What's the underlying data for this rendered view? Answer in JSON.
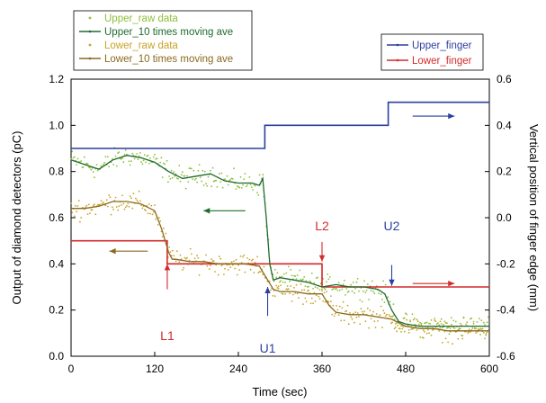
{
  "chart_data": {
    "type": "line",
    "xlabel": "Time (sec)",
    "ylabel": "Output of diamond detectors (pC)",
    "y2label": "Vertical position of finger edge (mm)",
    "xlim": [
      0,
      600
    ],
    "ylim": [
      0,
      1.2
    ],
    "y2lim": [
      -0.6,
      0.6
    ],
    "x_ticks": [
      "0",
      "120",
      "240",
      "360",
      "480",
      "600"
    ],
    "y_ticks": [
      "0.0",
      "0.2",
      "0.4",
      "0.6",
      "0.8",
      "1.0",
      "1.2"
    ],
    "y2_ticks": [
      "-0.6",
      "-0.4",
      "-0.2",
      "0.0",
      "0.2",
      "0.4",
      "0.6"
    ],
    "grid": false,
    "legend_left": {
      "placement": "top-left",
      "entries": [
        {
          "label": "Upper_raw data",
          "color": "#8fbf3a",
          "marker": "dot"
        },
        {
          "label": "Upper_10 times moving ave",
          "color": "#1e6b2e",
          "marker": "line"
        },
        {
          "label": "Lower_raw data",
          "color": "#c9a227",
          "marker": "dot"
        },
        {
          "label": "Lower_10 times moving ave",
          "color": "#8a6a1e",
          "marker": "line"
        }
      ]
    },
    "legend_right": {
      "placement": "top-right",
      "entries": [
        {
          "label": "Upper_finger",
          "color": "#2b3fa0",
          "marker": "line"
        },
        {
          "label": "Lower_finger",
          "color": "#d42a2a",
          "marker": "line"
        }
      ]
    },
    "series": [
      {
        "name": "Upper_finger",
        "axis": "right",
        "color": "#2b3fa0",
        "step": true,
        "x": [
          0,
          278,
          278,
          455,
          455,
          600
        ],
        "y": [
          0.3,
          0.3,
          0.4,
          0.4,
          0.5,
          0.5
        ]
      },
      {
        "name": "Lower_finger",
        "axis": "right",
        "color": "#d42a2a",
        "step": true,
        "x": [
          0,
          138,
          138,
          360,
          360,
          600
        ],
        "y": [
          -0.1,
          -0.1,
          -0.2,
          -0.2,
          -0.3,
          -0.3
        ]
      },
      {
        "name": "Upper_10 times moving ave",
        "axis": "left",
        "color": "#1e6b2e",
        "x": [
          0,
          20,
          40,
          60,
          80,
          100,
          120,
          140,
          160,
          180,
          200,
          220,
          240,
          260,
          270,
          275,
          280,
          285,
          290,
          300,
          320,
          340,
          360,
          380,
          400,
          420,
          440,
          450,
          460,
          470,
          480,
          500,
          520,
          540,
          560,
          580,
          600
        ],
        "y": [
          0.85,
          0.83,
          0.81,
          0.85,
          0.87,
          0.86,
          0.84,
          0.8,
          0.77,
          0.78,
          0.79,
          0.76,
          0.75,
          0.75,
          0.74,
          0.77,
          0.6,
          0.4,
          0.33,
          0.34,
          0.33,
          0.32,
          0.3,
          0.31,
          0.3,
          0.3,
          0.29,
          0.27,
          0.2,
          0.15,
          0.14,
          0.13,
          0.13,
          0.13,
          0.13,
          0.13,
          0.13
        ]
      },
      {
        "name": "Lower_10 times moving ave",
        "axis": "left",
        "color": "#8a6a1e",
        "x": [
          0,
          20,
          40,
          60,
          80,
          100,
          120,
          130,
          140,
          145,
          150,
          170,
          190,
          210,
          230,
          250,
          270,
          280,
          290,
          300,
          320,
          340,
          360,
          370,
          380,
          400,
          420,
          440,
          460,
          480,
          500,
          520,
          540,
          560,
          580,
          600
        ],
        "y": [
          0.64,
          0.64,
          0.65,
          0.67,
          0.67,
          0.66,
          0.63,
          0.55,
          0.45,
          0.42,
          0.42,
          0.41,
          0.41,
          0.4,
          0.4,
          0.4,
          0.39,
          0.34,
          0.29,
          0.28,
          0.28,
          0.27,
          0.27,
          0.22,
          0.19,
          0.18,
          0.18,
          0.17,
          0.16,
          0.13,
          0.12,
          0.12,
          0.11,
          0.11,
          0.11,
          0.11
        ]
      }
    ],
    "annotations": [
      {
        "label": "L1",
        "color": "#d42a2a",
        "x": 138,
        "axis": "left",
        "text_y": 0.07,
        "arrow_from_y": 0.29,
        "arrow_to_y": 0.4,
        "dir": "up"
      },
      {
        "label": "L2",
        "color": "#d42a2a",
        "x": 360,
        "axis": "left",
        "text_y": 0.545,
        "arrow_from_y": 0.495,
        "arrow_to_y": 0.41,
        "dir": "down"
      },
      {
        "label": "U1",
        "color": "#2b3fa0",
        "x": 282,
        "axis": "left",
        "text_y": 0.015,
        "arrow_from_y": 0.175,
        "arrow_to_y": 0.3,
        "dir": "up"
      },
      {
        "label": "U2",
        "color": "#2b3fa0",
        "x": 460,
        "axis": "left",
        "text_y": 0.545,
        "arrow_from_y": 0.395,
        "arrow_to_y": 0.305,
        "dir": "down"
      }
    ],
    "direction_arrows": [
      {
        "color": "#1e6b2e",
        "x_from": 250,
        "x_to": 190,
        "y": 0.63,
        "axis": "left"
      },
      {
        "color": "#8a6a1e",
        "x_from": 110,
        "x_to": 55,
        "y": 0.455,
        "axis": "left"
      },
      {
        "color": "#2b3fa0",
        "x_from": 490,
        "x_to": 550,
        "y": 1.04,
        "axis": "left"
      },
      {
        "color": "#d42a2a",
        "x_from": 490,
        "x_to": 550,
        "y": 0.315,
        "axis": "left"
      }
    ]
  }
}
